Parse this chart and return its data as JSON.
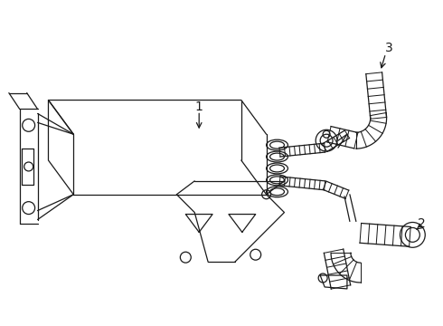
{
  "background_color": "#ffffff",
  "line_color": "#1a1a1a",
  "line_width": 0.9,
  "fig_width": 4.9,
  "fig_height": 3.6,
  "dpi": 100
}
